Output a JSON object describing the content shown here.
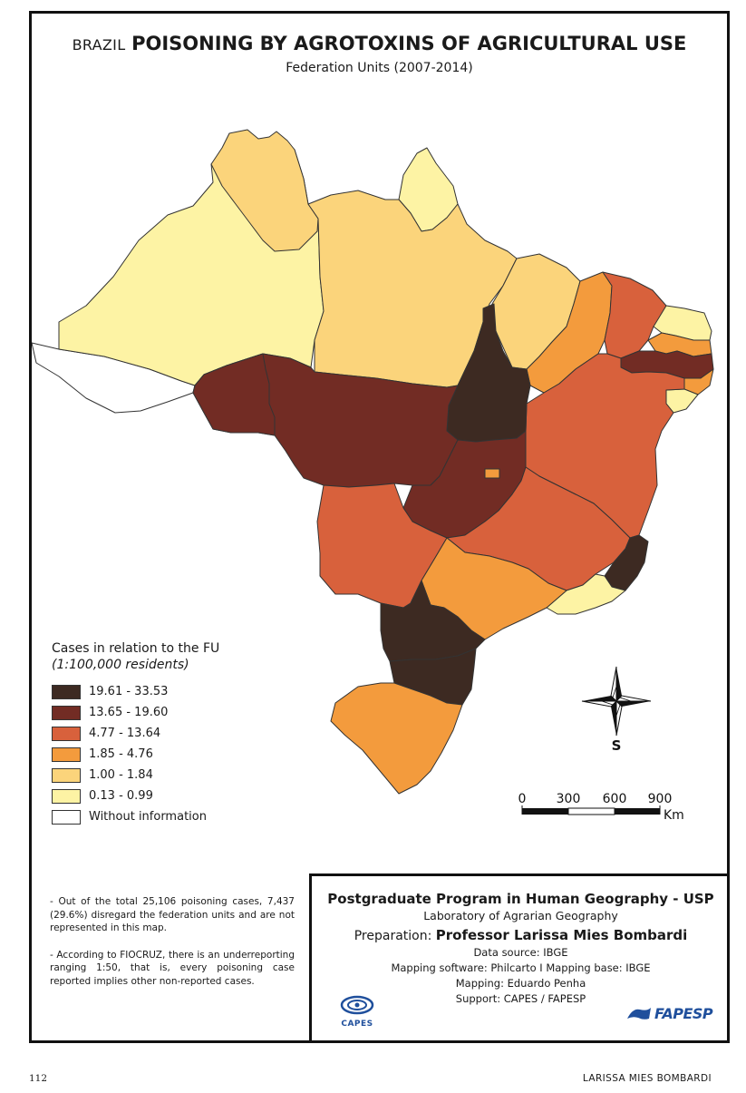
{
  "map": {
    "title_prefix": "BRAZIL",
    "title_main": "POISONING BY AGROTOXINS OF AGRICULTURAL USE",
    "subtitle": "Federation Units (2007-2014)"
  },
  "legend": {
    "title": "Cases in relation to the FU",
    "subtitle": "(1:100,000 residents)",
    "classes": [
      {
        "label": "19.61 - 33.53",
        "color": "#3d2a22"
      },
      {
        "label": "13.65 - 19.60",
        "color": "#722c24"
      },
      {
        "label": "4.77 - 13.64",
        "color": "#d8613c"
      },
      {
        "label": "1.85 - 4.76",
        "color": "#f39b3d"
      },
      {
        "label": "1.00 - 1.84",
        "color": "#fbd47b"
      },
      {
        "label": "0.13 - 0.99",
        "color": "#fdf3a4"
      },
      {
        "label": "Without information",
        "color": "#ffffff"
      }
    ]
  },
  "compass": {
    "label": "S"
  },
  "scale": {
    "ticks": [
      "0",
      "300",
      "600",
      "900"
    ],
    "unit": "Km"
  },
  "notes": [
    "- Out of the total 25,106 poisoning cases, 7,437 (29.6%) disregard the federation units and are not represented in this map.",
    "- According to FIOCRUZ, there is an underreporting ranging 1:50, that is, every poisoning case reported implies other non-reported cases."
  ],
  "credits": {
    "program": "Postgraduate Program in Human Geography - USP",
    "lab": "Laboratory of Agrarian Geography",
    "prep_label": "Preparation:",
    "prep_name": "Professor Larissa Mies Bombardi",
    "source": "Data source: IBGE",
    "software": "Mapping software: Philcarto I Mapping base: IBGE",
    "mapping": "Mapping: Eduardo Penha",
    "support": "Support: CAPES / FAPESP",
    "capes_logo_text": "CAPES",
    "fapesp_logo_text": "FAPESP"
  },
  "footer": {
    "page_number": "112",
    "author": "LARISSA MIES BOMBARDI"
  }
}
